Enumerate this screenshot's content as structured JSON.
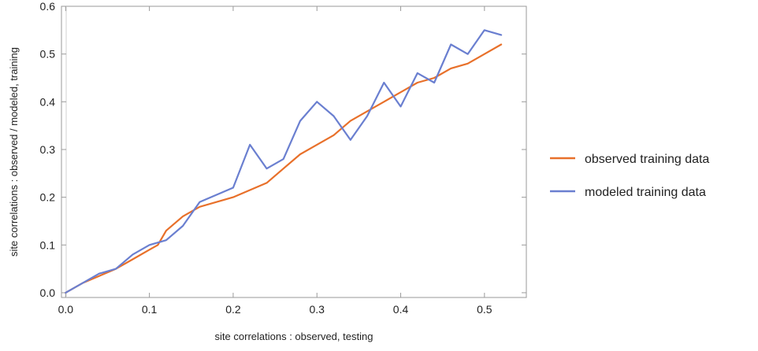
{
  "chart_data": {
    "type": "line",
    "title": "",
    "xlabel": "site correlations :  observed,  testing",
    "ylabel": "site correlations :  observed / modeled,  training",
    "xlim": [
      -0.005,
      0.55
    ],
    "ylim": [
      -0.01,
      0.6
    ],
    "x_ticks": [
      "0.0",
      "0.1",
      "0.2",
      "0.3",
      "0.4",
      "0.5"
    ],
    "y_ticks": [
      "0.0",
      "0.1",
      "0.2",
      "0.3",
      "0.4",
      "0.5",
      "0.6"
    ],
    "grid": false,
    "legend_position": "right",
    "series": [
      {
        "name": "observed training data",
        "color": "#e8702a",
        "points": [
          [
            0.0,
            0.0
          ],
          [
            0.02,
            0.02
          ],
          [
            0.04,
            0.035
          ],
          [
            0.06,
            0.05
          ],
          [
            0.08,
            0.07
          ],
          [
            0.1,
            0.09
          ],
          [
            0.11,
            0.1
          ],
          [
            0.12,
            0.13
          ],
          [
            0.14,
            0.16
          ],
          [
            0.16,
            0.18
          ],
          [
            0.2,
            0.2
          ],
          [
            0.24,
            0.23
          ],
          [
            0.26,
            0.26
          ],
          [
            0.28,
            0.29
          ],
          [
            0.3,
            0.31
          ],
          [
            0.32,
            0.33
          ],
          [
            0.34,
            0.36
          ],
          [
            0.36,
            0.38
          ],
          [
            0.38,
            0.4
          ],
          [
            0.4,
            0.42
          ],
          [
            0.42,
            0.44
          ],
          [
            0.44,
            0.45
          ],
          [
            0.46,
            0.47
          ],
          [
            0.48,
            0.48
          ],
          [
            0.5,
            0.5
          ],
          [
            0.52,
            0.52
          ]
        ]
      },
      {
        "name": "modeled training data",
        "color": "#6a7fd0",
        "points": [
          [
            0.0,
            0.0
          ],
          [
            0.02,
            0.02
          ],
          [
            0.04,
            0.04
          ],
          [
            0.06,
            0.05
          ],
          [
            0.08,
            0.08
          ],
          [
            0.1,
            0.1
          ],
          [
            0.12,
            0.11
          ],
          [
            0.14,
            0.14
          ],
          [
            0.16,
            0.19
          ],
          [
            0.2,
            0.22
          ],
          [
            0.22,
            0.31
          ],
          [
            0.24,
            0.26
          ],
          [
            0.26,
            0.28
          ],
          [
            0.28,
            0.36
          ],
          [
            0.3,
            0.4
          ],
          [
            0.32,
            0.37
          ],
          [
            0.34,
            0.32
          ],
          [
            0.36,
            0.37
          ],
          [
            0.38,
            0.44
          ],
          [
            0.4,
            0.39
          ],
          [
            0.42,
            0.46
          ],
          [
            0.44,
            0.44
          ],
          [
            0.46,
            0.52
          ],
          [
            0.48,
            0.5
          ],
          [
            0.5,
            0.55
          ],
          [
            0.52,
            0.54
          ]
        ]
      }
    ]
  }
}
